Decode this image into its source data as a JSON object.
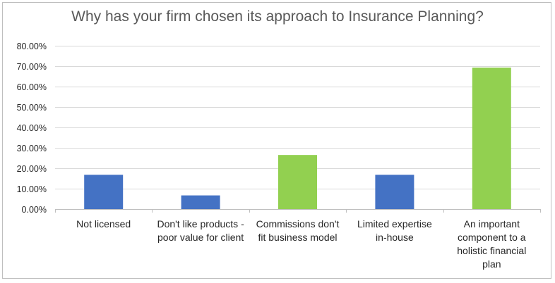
{
  "chart_data": {
    "type": "bar",
    "title": "Why has your firm chosen its approach to Insurance Planning?",
    "xlabel": "",
    "ylabel": "",
    "categories": [
      [
        "Not  licensed"
      ],
      [
        "Don't like products -",
        "poor value for client"
      ],
      [
        "Commissions don't",
        "fit business model"
      ],
      [
        "Limited expertise",
        "in-house"
      ],
      [
        "An important",
        "component to a",
        "holistic financial",
        "plan"
      ]
    ],
    "values": [
      0.168,
      0.067,
      0.265,
      0.168,
      0.693
    ],
    "bar_colors": [
      "#4472c4",
      "#4472c4",
      "#92d050",
      "#4472c4",
      "#92d050"
    ],
    "ylim": [
      0,
      0.8
    ],
    "yticks": [
      0,
      0.1,
      0.2,
      0.3,
      0.4,
      0.5,
      0.6,
      0.7,
      0.8
    ],
    "ytick_labels": [
      "0.00%",
      "10.00%",
      "20.00%",
      "30.00%",
      "40.00%",
      "50.00%",
      "60.00%",
      "70.00%",
      "80.00%"
    ],
    "grid": true,
    "legend": false,
    "colors": {
      "grid": "#d9d9d9",
      "axis": "#bfbfbf",
      "text": "#262626",
      "title": "#595959"
    }
  }
}
